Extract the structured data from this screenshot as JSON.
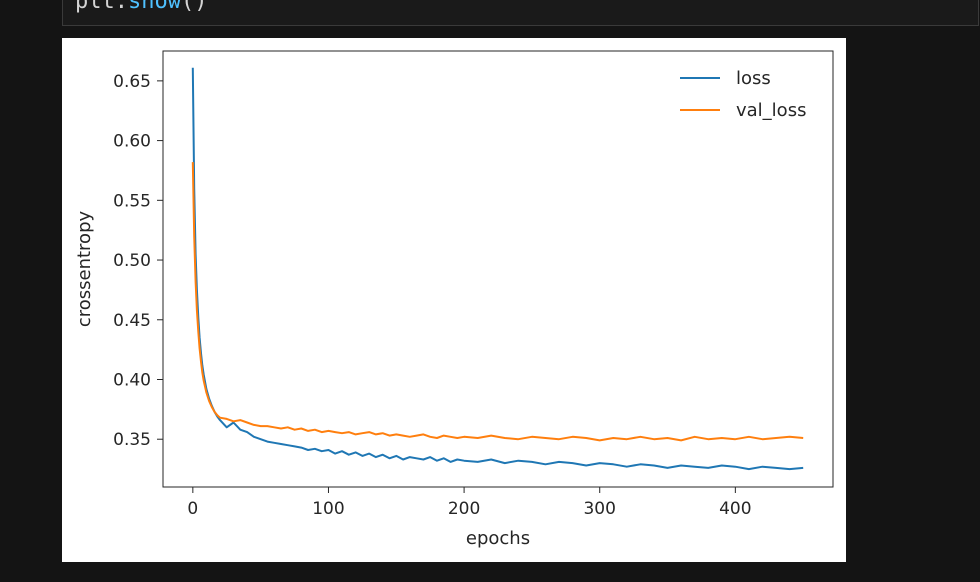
{
  "notebook": {
    "code_cell": {
      "prefix": "plt.",
      "method": "show",
      "suffix": "()"
    }
  },
  "colors": {
    "loss": "#1f77b4",
    "val_loss": "#ff7f0e",
    "axis": "#262626",
    "background": "#ffffff"
  },
  "chart_data": {
    "type": "line",
    "title": "",
    "xlabel": "epochs",
    "ylabel": "crossentropy",
    "xlim": [
      -22,
      472
    ],
    "ylim": [
      0.31,
      0.675
    ],
    "xticks": [
      0,
      100,
      200,
      300,
      400
    ],
    "yticks": [
      0.35,
      0.4,
      0.45,
      0.5,
      0.55,
      0.6,
      0.65
    ],
    "ytick_labels": [
      "0.35",
      "0.40",
      "0.45",
      "0.50",
      "0.55",
      "0.60",
      "0.65"
    ],
    "grid": false,
    "legend_position": "upper-right",
    "series": [
      {
        "name": "loss",
        "color": "#1f77b4",
        "x": [
          0,
          1,
          2,
          3,
          4,
          5,
          6,
          7,
          8,
          10,
          12,
          14,
          16,
          18,
          20,
          25,
          30,
          35,
          40,
          45,
          50,
          55,
          60,
          65,
          70,
          75,
          80,
          85,
          90,
          95,
          100,
          105,
          110,
          115,
          120,
          125,
          130,
          135,
          140,
          145,
          150,
          155,
          160,
          165,
          170,
          175,
          180,
          185,
          190,
          195,
          200,
          210,
          220,
          230,
          240,
          250,
          260,
          270,
          280,
          290,
          300,
          310,
          320,
          330,
          340,
          350,
          360,
          370,
          380,
          390,
          400,
          410,
          420,
          430,
          440,
          450
        ],
        "values": [
          0.661,
          0.56,
          0.505,
          0.475,
          0.452,
          0.435,
          0.422,
          0.412,
          0.404,
          0.392,
          0.384,
          0.378,
          0.373,
          0.369,
          0.366,
          0.36,
          0.364,
          0.358,
          0.356,
          0.352,
          0.35,
          0.348,
          0.347,
          0.346,
          0.345,
          0.344,
          0.343,
          0.341,
          0.342,
          0.34,
          0.341,
          0.338,
          0.34,
          0.337,
          0.339,
          0.336,
          0.338,
          0.335,
          0.337,
          0.334,
          0.336,
          0.333,
          0.335,
          0.334,
          0.333,
          0.335,
          0.332,
          0.334,
          0.331,
          0.333,
          0.332,
          0.331,
          0.333,
          0.33,
          0.332,
          0.331,
          0.329,
          0.331,
          0.33,
          0.328,
          0.33,
          0.329,
          0.327,
          0.329,
          0.328,
          0.326,
          0.328,
          0.327,
          0.326,
          0.328,
          0.327,
          0.325,
          0.327,
          0.326,
          0.325,
          0.326
        ]
      },
      {
        "name": "val_loss",
        "color": "#ff7f0e",
        "x": [
          0,
          1,
          2,
          3,
          4,
          5,
          6,
          7,
          8,
          10,
          12,
          14,
          16,
          18,
          20,
          25,
          30,
          35,
          40,
          45,
          50,
          55,
          60,
          65,
          70,
          75,
          80,
          85,
          90,
          95,
          100,
          105,
          110,
          115,
          120,
          125,
          130,
          135,
          140,
          145,
          150,
          155,
          160,
          165,
          170,
          175,
          180,
          185,
          190,
          195,
          200,
          210,
          220,
          230,
          240,
          250,
          260,
          270,
          280,
          290,
          300,
          310,
          320,
          330,
          340,
          350,
          360,
          370,
          380,
          390,
          400,
          410,
          420,
          430,
          440,
          450
        ],
        "values": [
          0.582,
          0.52,
          0.482,
          0.458,
          0.44,
          0.426,
          0.415,
          0.406,
          0.399,
          0.389,
          0.382,
          0.377,
          0.373,
          0.37,
          0.368,
          0.367,
          0.365,
          0.366,
          0.364,
          0.362,
          0.361,
          0.361,
          0.36,
          0.359,
          0.36,
          0.358,
          0.359,
          0.357,
          0.358,
          0.356,
          0.357,
          0.356,
          0.355,
          0.356,
          0.354,
          0.355,
          0.356,
          0.354,
          0.355,
          0.353,
          0.354,
          0.353,
          0.352,
          0.353,
          0.354,
          0.352,
          0.351,
          0.353,
          0.352,
          0.351,
          0.352,
          0.351,
          0.353,
          0.351,
          0.35,
          0.352,
          0.351,
          0.35,
          0.352,
          0.351,
          0.349,
          0.351,
          0.35,
          0.352,
          0.35,
          0.351,
          0.349,
          0.352,
          0.35,
          0.351,
          0.35,
          0.352,
          0.35,
          0.351,
          0.352,
          0.351
        ]
      }
    ]
  }
}
